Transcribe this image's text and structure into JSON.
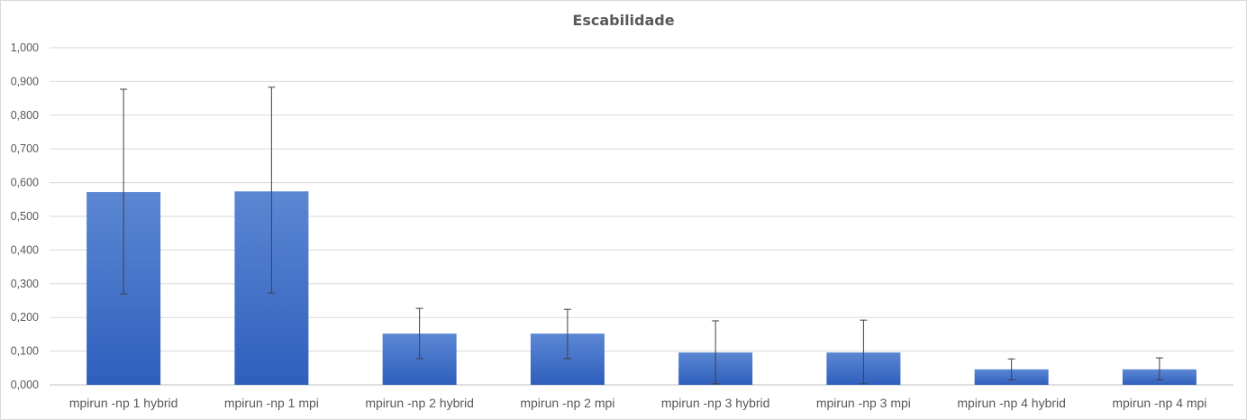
{
  "chart_data": {
    "type": "bar",
    "title": "Escabilidade",
    "xlabel": "",
    "ylabel": "",
    "ylim": [
      0,
      1.0
    ],
    "ytick_step": 0.1,
    "ytick_labels": [
      "0,000",
      "0,100",
      "0,200",
      "0,300",
      "0,400",
      "0,500",
      "0,600",
      "0,700",
      "0,800",
      "0,900",
      "1,000"
    ],
    "grid": true,
    "legend": "none",
    "bar_color": "#4472c4",
    "categories": [
      "mpirun -np 1 hybrid",
      "mpirun -np 1 mpi",
      "mpirun -np 2 hybrid",
      "mpirun -np 2 mpi",
      "mpirun -np 3 hybrid",
      "mpirun -np 3 mpi",
      "mpirun -np 4 hybrid",
      "mpirun -np 4 mpi"
    ],
    "values": [
      0.572,
      0.574,
      0.152,
      0.152,
      0.096,
      0.096,
      0.046,
      0.046
    ],
    "error_bars": [
      {
        "low": 0.27,
        "high": 0.877
      },
      {
        "low": 0.272,
        "high": 0.883
      },
      {
        "low": 0.078,
        "high": 0.227
      },
      {
        "low": 0.078,
        "high": 0.224
      },
      {
        "low": 0.003,
        "high": 0.19
      },
      {
        "low": 0.003,
        "high": 0.192
      },
      {
        "low": 0.015,
        "high": 0.077
      },
      {
        "low": 0.015,
        "high": 0.08
      }
    ]
  }
}
